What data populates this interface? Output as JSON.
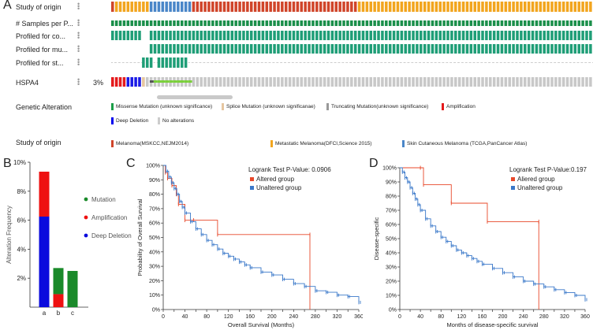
{
  "panels": {
    "a": "A",
    "b": "B",
    "c": "C",
    "d": "D"
  },
  "oncoprint": {
    "tracks": [
      {
        "label": "Study of origin",
        "kind": "study"
      },
      {
        "label": "# Samples per P...",
        "kind": "samples"
      },
      {
        "label": "Profiled for co...",
        "kind": "profiled_co"
      },
      {
        "label": "Profiled for mu...",
        "kind": "profiled_mu"
      },
      {
        "label": "Profiled for st...",
        "kind": "profiled_st"
      },
      {
        "label": "HSPA4",
        "kind": "gene",
        "pct": "3%"
      }
    ],
    "genetic_alteration_label": "Genetic Alteration",
    "alteration_legend": [
      {
        "label": "Missense Mutation (unknown significance)",
        "color": "#1a9e47"
      },
      {
        "label": "Splice Mutation (unknown significanae)",
        "color": "#e6c6a0"
      },
      {
        "label": "Truncating Mutation(unknown significance)",
        "color": "#999999"
      },
      {
        "label": "Amplification",
        "color": "#e41a1c"
      },
      {
        "label": "Deep Deletion",
        "color": "#0000ee"
      },
      {
        "label": "No alterations",
        "color": "#cccccc"
      }
    ],
    "study_label": "Study of origin",
    "study_legend": [
      {
        "label": "Melanoma(MSKCC,NEJM2014)",
        "color": "#d0452a"
      },
      {
        "label": "Metastatic Melanoma(DFCI,Science 2015)",
        "color": "#f2a51e"
      },
      {
        "label": "Skin Cutaneous Melanoma (TCGA,PanCancer Atlas)",
        "color": "#4a86c8"
      }
    ],
    "colors": {
      "study_mskcc": "#d0452a",
      "study_dfci": "#f2a51e",
      "study_tcga": "#4a86c8",
      "samples": "#1a8f4a",
      "profiled": "#1f9e77",
      "no_alt": "#c8c8c8"
    }
  },
  "chart_data": [
    {
      "type": "bar",
      "ylabel": "Alteration Frequency",
      "categories": [
        "a",
        "b",
        "c"
      ],
      "yticks": [
        "2%",
        "4%",
        "6%",
        "8%",
        "10%"
      ],
      "ylim": [
        0,
        10
      ],
      "series": [
        {
          "name": "Mutation",
          "color": "#1a8a2a",
          "values": [
            0,
            1.8,
            2.5
          ]
        },
        {
          "name": "Amplification",
          "color": "#ee1111",
          "values": [
            3.1,
            0.9,
            0
          ]
        },
        {
          "name": "Deep Deletion",
          "color": "#0b0bdd",
          "values": [
            6.25,
            0,
            0
          ]
        }
      ],
      "legend_position": "right"
    },
    {
      "type": "line",
      "title": "Logrank Test P-Value: 0.0906",
      "xlabel": "Overall Survival (Months)",
      "ylabel": "Probability of Overall Survival",
      "xlim": [
        0,
        360
      ],
      "xticks": [
        "0",
        "20",
        "40",
        "60",
        "80",
        "100",
        "120",
        "140",
        "160",
        "180",
        "200",
        "220",
        "240",
        "260",
        "280",
        "300",
        "320",
        "340",
        "360"
      ],
      "xticks_shown": [
        "0",
        "40",
        "80",
        "120",
        "160",
        "200",
        "240",
        "280",
        "320",
        "360"
      ],
      "yticks": [
        "0%",
        "10%",
        "20%",
        "30%",
        "40%",
        "50%",
        "60%",
        "70%",
        "80%",
        "90%",
        "100%"
      ],
      "series": [
        {
          "name": "Altered group",
          "color": "#e8482a",
          "x": [
            0,
            4,
            8,
            16,
            24,
            28,
            40,
            56,
            100,
            270,
            270
          ],
          "y": [
            100,
            95,
            91,
            86,
            80,
            73,
            62,
            62,
            52,
            52,
            0
          ]
        },
        {
          "name": "Unaltered group",
          "color": "#3a78c9",
          "x": [
            0,
            5,
            10,
            15,
            20,
            25,
            30,
            35,
            40,
            50,
            60,
            70,
            80,
            90,
            100,
            110,
            120,
            130,
            140,
            150,
            160,
            180,
            200,
            220,
            240,
            260,
            280,
            300,
            320,
            340,
            360
          ],
          "y": [
            100,
            96,
            92,
            88,
            84,
            80,
            75,
            71,
            67,
            61,
            56,
            52,
            48,
            45,
            42,
            39,
            37,
            35,
            33,
            31,
            29,
            26,
            24,
            21,
            18,
            16,
            13,
            12,
            10,
            9,
            5
          ]
        }
      ]
    },
    {
      "type": "line",
      "title": "Logrank Test P-Value:0.197",
      "xlabel": "Months of disease-specific survival",
      "ylabel": "Disease-specific",
      "xlim": [
        0,
        360
      ],
      "xticks": [
        "0",
        "20",
        "40",
        "60",
        "80",
        "100",
        "120",
        "140",
        "160",
        "180",
        "200",
        "220",
        "240",
        "260",
        "280",
        "300",
        "320",
        "340",
        "360"
      ],
      "xticks_shown": [
        "0",
        "40",
        "80",
        "120",
        "160",
        "200",
        "240",
        "280",
        "320",
        "360"
      ],
      "yticks": [
        "0%",
        "10%",
        "20%",
        "30%",
        "40%",
        "50%",
        "60%",
        "70%",
        "80%",
        "90%",
        "100%"
      ],
      "series": [
        {
          "name": "Aliered group",
          "color": "#e8482a",
          "x": [
            0,
            40,
            46,
            100,
            170,
            270,
            270
          ],
          "y": [
            100,
            100,
            88,
            75,
            62,
            62,
            0
          ]
        },
        {
          "name": "Unaltered group",
          "color": "#3a78c9",
          "x": [
            0,
            5,
            10,
            15,
            20,
            25,
            30,
            35,
            40,
            50,
            60,
            70,
            80,
            90,
            100,
            110,
            120,
            130,
            140,
            150,
            160,
            180,
            200,
            220,
            240,
            260,
            280,
            300,
            320,
            340,
            360
          ],
          "y": [
            100,
            97,
            93,
            90,
            86,
            82,
            78,
            74,
            70,
            64,
            59,
            55,
            51,
            48,
            45,
            42,
            40,
            38,
            36,
            34,
            32,
            29,
            26,
            23,
            20,
            18,
            16,
            14,
            12,
            10,
            7
          ]
        }
      ]
    }
  ]
}
